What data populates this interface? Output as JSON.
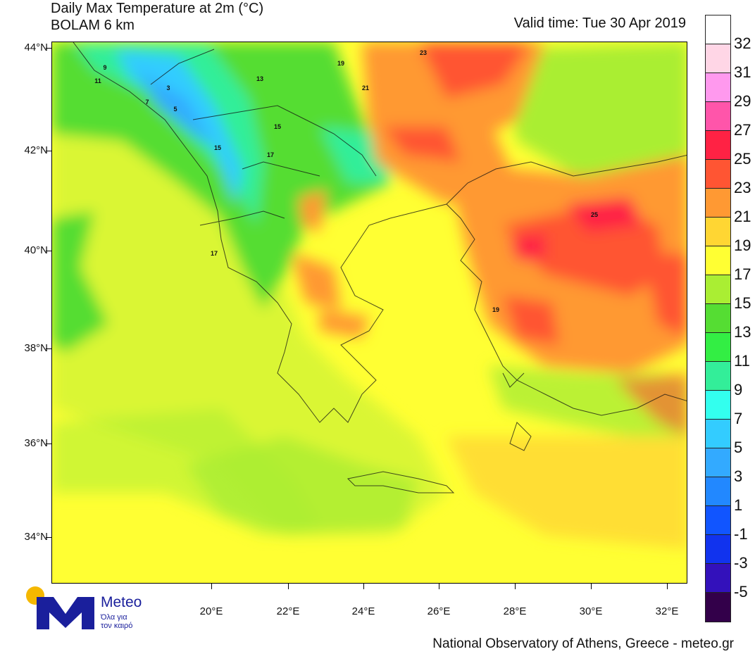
{
  "header": {
    "title_line1": "Daily Max Temperature at 2m (°C)",
    "title_line2": "BOLAM 6 km",
    "valid_time": "Valid time: Tue 30 Apr 2019"
  },
  "footer": {
    "credit": "National Observatory of Athens, Greece - meteo.gr"
  },
  "logo": {
    "name": "Meteo",
    "tagline_line1": "Όλα για",
    "tagline_line2": "τον καιρό",
    "sun_color": "#f5b800",
    "brand_color": "#1a1f9c"
  },
  "axes": {
    "lat_labels": [
      "44°N",
      "42°N",
      "40°N",
      "38°N",
      "36°N",
      "34°N"
    ],
    "lon_labels": [
      "20°E",
      "22°E",
      "24°E",
      "26°E",
      "28°E",
      "30°E",
      "32°E"
    ]
  },
  "legend": {
    "unit": "°C",
    "levels": [
      {
        "label": "32",
        "color": "#ffffff"
      },
      {
        "label": "31",
        "color": "#ffd6e6"
      },
      {
        "label": "29",
        "color": "#ff99ee"
      },
      {
        "label": "27",
        "color": "#ff55aa"
      },
      {
        "label": "25",
        "color": "#ff2244"
      },
      {
        "label": "23",
        "color": "#ff5533"
      },
      {
        "label": "21",
        "color": "#ff9933"
      },
      {
        "label": "19",
        "color": "#ffd633"
      },
      {
        "label": "17",
        "color": "#ffff33"
      },
      {
        "label": "15",
        "color": "#aaee33"
      },
      {
        "label": "13",
        "color": "#55dd33"
      },
      {
        "label": "11",
        "color": "#33ee44"
      },
      {
        "label": "9",
        "color": "#33ee99"
      },
      {
        "label": "7",
        "color": "#33ffee"
      },
      {
        "label": "5",
        "color": "#33ccff"
      },
      {
        "label": "3",
        "color": "#33aaff"
      },
      {
        "label": "1",
        "color": "#2288ff"
      },
      {
        "label": "-1",
        "color": "#1155ff"
      },
      {
        "label": "-3",
        "color": "#1133ee"
      },
      {
        "label": "-5",
        "color": "#3311bb"
      },
      {
        "label": "",
        "color": "#33004a"
      }
    ]
  },
  "map_labels": [
    {
      "t": "9",
      "c": "blue"
    },
    {
      "t": "11",
      "c": "blue"
    },
    {
      "t": "3",
      "c": "blue"
    },
    {
      "t": "5",
      "c": "blue"
    },
    {
      "t": "7",
      "c": "blue"
    },
    {
      "t": "13",
      "c": "g"
    },
    {
      "t": "15",
      "c": "g"
    },
    {
      "t": "17",
      "c": "g"
    },
    {
      "t": "19",
      "c": "y"
    },
    {
      "t": "21",
      "c": "o"
    },
    {
      "t": "23",
      "c": "o"
    },
    {
      "t": "25",
      "c": "r"
    },
    {
      "t": "15",
      "c": "g"
    },
    {
      "t": "17",
      "c": "y"
    },
    {
      "t": "19",
      "c": "o"
    }
  ]
}
